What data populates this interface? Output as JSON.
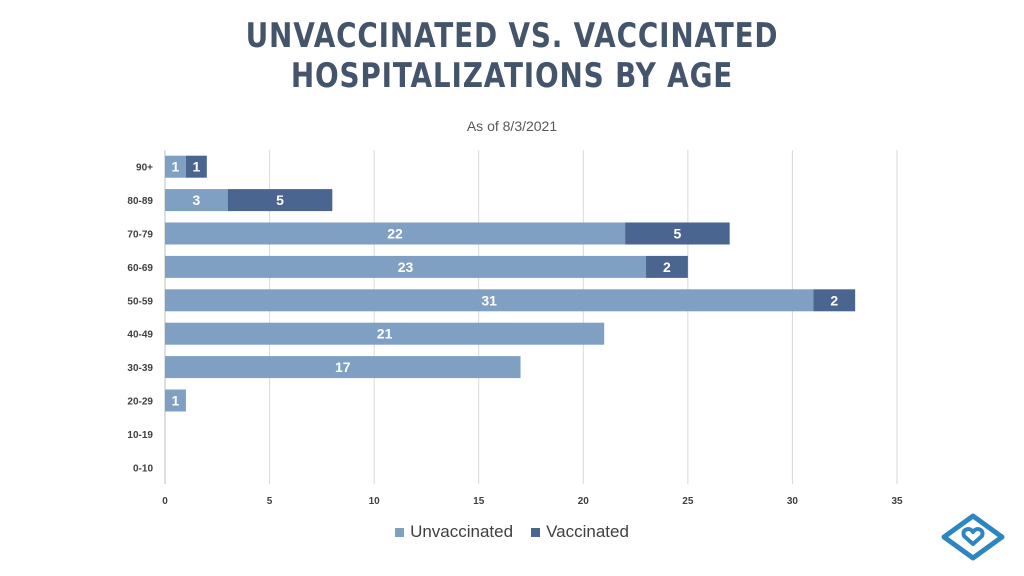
{
  "chart_data": {
    "type": "bar",
    "orientation": "horizontal",
    "stacked": true,
    "title_line1": "UNVACCINATED VS. VACCINATED",
    "title_line2": "HOSPITALIZATIONS BY AGE",
    "subtitle": "As of 8/3/2021",
    "categories": [
      "90+",
      "80-89",
      "70-79",
      "60-69",
      "50-59",
      "40-49",
      "30-39",
      "20-29",
      "10-19",
      "0-10"
    ],
    "series": [
      {
        "name": "Unvaccinated",
        "color": "#7f9fc3",
        "values": [
          1,
          3,
          22,
          23,
          31,
          21,
          17,
          1,
          0,
          0
        ]
      },
      {
        "name": "Vaccinated",
        "color": "#4a6590",
        "values": [
          1,
          5,
          5,
          2,
          2,
          0,
          0,
          0,
          0,
          0
        ]
      }
    ],
    "xlim": [
      0,
      35
    ],
    "xticks": [
      0,
      5,
      10,
      15,
      20,
      25,
      30,
      35
    ],
    "grid": true,
    "legend_position": "bottom"
  },
  "colors": {
    "title": "#44546a",
    "gridline": "#d9d9d9",
    "logo": "#2e86c1"
  },
  "logo_icon": "diamond-heart-logo"
}
